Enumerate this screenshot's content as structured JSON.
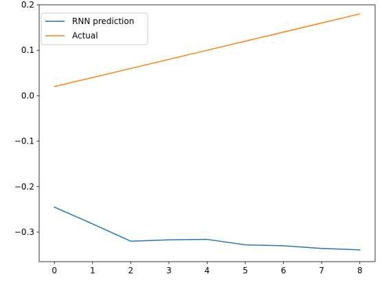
{
  "chart_data": {
    "type": "line",
    "title": "",
    "xlabel": "",
    "ylabel": "",
    "x": [
      0,
      1,
      2,
      3,
      4,
      5,
      6,
      7,
      8
    ],
    "xlim": [
      -0.4,
      8.4
    ],
    "ylim": [
      -0.365,
      0.2
    ],
    "xticks": [
      0,
      1,
      2,
      3,
      4,
      5,
      6,
      7,
      8
    ],
    "yticks": [
      -0.3,
      -0.2,
      -0.1,
      0.0,
      0.1,
      0.2
    ],
    "ytick_labels": [
      "−0.3",
      "−0.2",
      "−0.1",
      "0.0",
      "0.1",
      "0.2"
    ],
    "grid": false,
    "legend_position": "top-left",
    "series": [
      {
        "name": "RNN prediction",
        "color": "#1f77b4",
        "values": [
          -0.245,
          -0.282,
          -0.32,
          -0.317,
          -0.316,
          -0.328,
          -0.33,
          -0.336,
          -0.339
        ]
      },
      {
        "name": "Actual",
        "color": "#ff7f0e",
        "values": [
          0.02,
          0.04,
          0.06,
          0.08,
          0.1,
          0.12,
          0.14,
          0.16,
          0.18
        ]
      }
    ]
  }
}
